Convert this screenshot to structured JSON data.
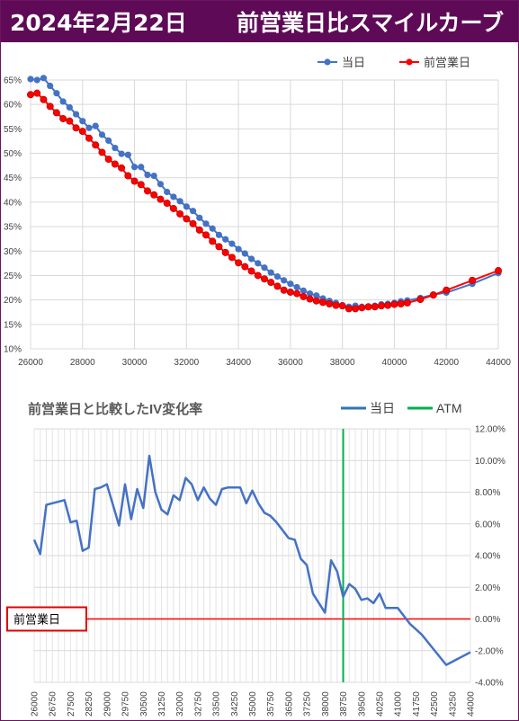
{
  "header": {
    "date": "2024年2月22日",
    "title": "前営業日比スマイルカーブ",
    "bg_color": "#5e0a57"
  },
  "chart_data": [
    {
      "type": "line",
      "title": "",
      "xlabel": "",
      "ylabel": "",
      "xlim": [
        26000,
        44000
      ],
      "ylim": [
        10,
        65
      ],
      "x_ticks": [
        "26000",
        "28000",
        "30000",
        "32000",
        "34000",
        "36000",
        "38000",
        "40000",
        "42000",
        "44000"
      ],
      "y_ticks": [
        "10%",
        "15%",
        "20%",
        "25%",
        "30%",
        "35%",
        "40%",
        "45%",
        "50%",
        "55%",
        "60%",
        "65%"
      ],
      "legend_position": "top-right",
      "grid": true,
      "x": [
        26000,
        26250,
        26500,
        26750,
        27000,
        27250,
        27500,
        27750,
        28000,
        28250,
        28500,
        28750,
        29000,
        29250,
        29500,
        29750,
        30000,
        30250,
        30500,
        30750,
        31000,
        31250,
        31500,
        31750,
        32000,
        32250,
        32500,
        32750,
        33000,
        33250,
        33500,
        33750,
        34000,
        34250,
        34500,
        34750,
        35000,
        35250,
        35500,
        35750,
        36000,
        36250,
        36500,
        36750,
        37000,
        37250,
        37500,
        37750,
        38000,
        38250,
        38500,
        38750,
        39000,
        39250,
        39500,
        39750,
        40000,
        40250,
        40500,
        41000,
        41500,
        42000,
        43000,
        44000
      ],
      "series": [
        {
          "name": "当日",
          "color": "#4472c4",
          "values": [
            65.2,
            65.0,
            65.4,
            63.8,
            62.3,
            60.6,
            59.4,
            58.0,
            56.6,
            55.2,
            55.6,
            53.8,
            52.6,
            51.1,
            49.9,
            49.7,
            47.2,
            47.2,
            45.6,
            45.4,
            43.7,
            42.1,
            41.1,
            40.2,
            39.1,
            38.2,
            36.8,
            35.6,
            34.6,
            33.3,
            32.4,
            31.5,
            30.4,
            29.5,
            28.4,
            27.5,
            26.6,
            25.6,
            24.8,
            24.0,
            23.3,
            22.6,
            21.9,
            21.3,
            20.9,
            20.3,
            19.8,
            19.4,
            18.9,
            18.6,
            18.8,
            18.6,
            18.6,
            18.8,
            19.1,
            19.2,
            19.4,
            19.7,
            19.9,
            20.4,
            21.1,
            21.5,
            23.3,
            25.5
          ]
        },
        {
          "name": "前営業日",
          "color": "#ff0000",
          "values": [
            62.0,
            62.3,
            61.0,
            59.6,
            58.3,
            57.1,
            56.6,
            55.2,
            54.5,
            53.1,
            51.7,
            50.2,
            48.8,
            47.8,
            47.0,
            45.4,
            44.3,
            43.6,
            42.3,
            41.5,
            40.6,
            39.8,
            38.7,
            37.6,
            36.6,
            35.6,
            34.3,
            33.3,
            32.0,
            30.9,
            29.7,
            28.7,
            27.6,
            26.8,
            25.9,
            25.0,
            24.3,
            23.6,
            22.8,
            22.0,
            21.6,
            21.3,
            20.7,
            20.2,
            19.8,
            19.5,
            19.2,
            18.9,
            18.8,
            18.2,
            18.2,
            18.4,
            18.6,
            18.6,
            18.8,
            18.9,
            19.1,
            19.2,
            19.4,
            20.1,
            21.0,
            22.0,
            24.0,
            26.0
          ]
        }
      ]
    },
    {
      "type": "line",
      "title": "前営業日と比較したIV変化率",
      "xlabel": "",
      "ylabel": "",
      "ylim": [
        -4,
        12
      ],
      "y_ticks": [
        "-4.00%",
        "-2.00%",
        "0.00%",
        "2.00%",
        "4.00%",
        "6.00%",
        "8.00%",
        "10.00%",
        "12.00%"
      ],
      "x_ticks": [
        "26000",
        "26750",
        "27500",
        "28250",
        "29000",
        "29750",
        "30500",
        "31250",
        "32000",
        "32750",
        "33500",
        "34250",
        "35000",
        "35750",
        "36500",
        "37250",
        "38000",
        "38750",
        "39500",
        "40250",
        "41000",
        "41750",
        "42500",
        "43250",
        "44000"
      ],
      "legend_position": "top-right",
      "grid": true,
      "atm": 38750,
      "baseline_label": "前営業日",
      "x": [
        26000,
        26250,
        26500,
        26750,
        27000,
        27250,
        27500,
        27750,
        28000,
        28250,
        28500,
        28750,
        29000,
        29250,
        29500,
        29750,
        30000,
        30250,
        30500,
        30750,
        31000,
        31250,
        31500,
        31750,
        32000,
        32250,
        32500,
        32750,
        33000,
        33250,
        33500,
        33750,
        34000,
        34250,
        34500,
        34750,
        35000,
        35250,
        35500,
        35750,
        36000,
        36250,
        36500,
        36750,
        37000,
        37250,
        37500,
        37750,
        38000,
        38250,
        38500,
        38750,
        39000,
        39250,
        39500,
        39750,
        40000,
        40250,
        40500,
        41000,
        41500,
        42000,
        43000,
        44000
      ],
      "series": [
        {
          "name": "当日",
          "color": "#2e75b6",
          "values": [
            5.0,
            4.1,
            7.2,
            7.3,
            7.4,
            7.5,
            6.1,
            6.2,
            4.3,
            4.5,
            8.2,
            8.3,
            8.5,
            7.2,
            5.9,
            8.5,
            6.3,
            8.2,
            7.0,
            10.3,
            8.0,
            6.9,
            6.6,
            7.8,
            7.5,
            8.9,
            8.5,
            7.5,
            8.3,
            7.6,
            7.2,
            8.2,
            8.3,
            8.3,
            8.3,
            7.3,
            8.1,
            7.3,
            6.7,
            6.5,
            6.1,
            5.6,
            5.1,
            5.0,
            3.8,
            3.4,
            1.6,
            1.0,
            0.4,
            3.7,
            3.0,
            1.4,
            2.2,
            1.9,
            1.2,
            1.3,
            1.0,
            1.6,
            0.7,
            0.7,
            -0.3,
            -1.0,
            -2.9,
            -2.1
          ]
        },
        {
          "name": "ATM",
          "color": "#00b050"
        }
      ]
    }
  ]
}
